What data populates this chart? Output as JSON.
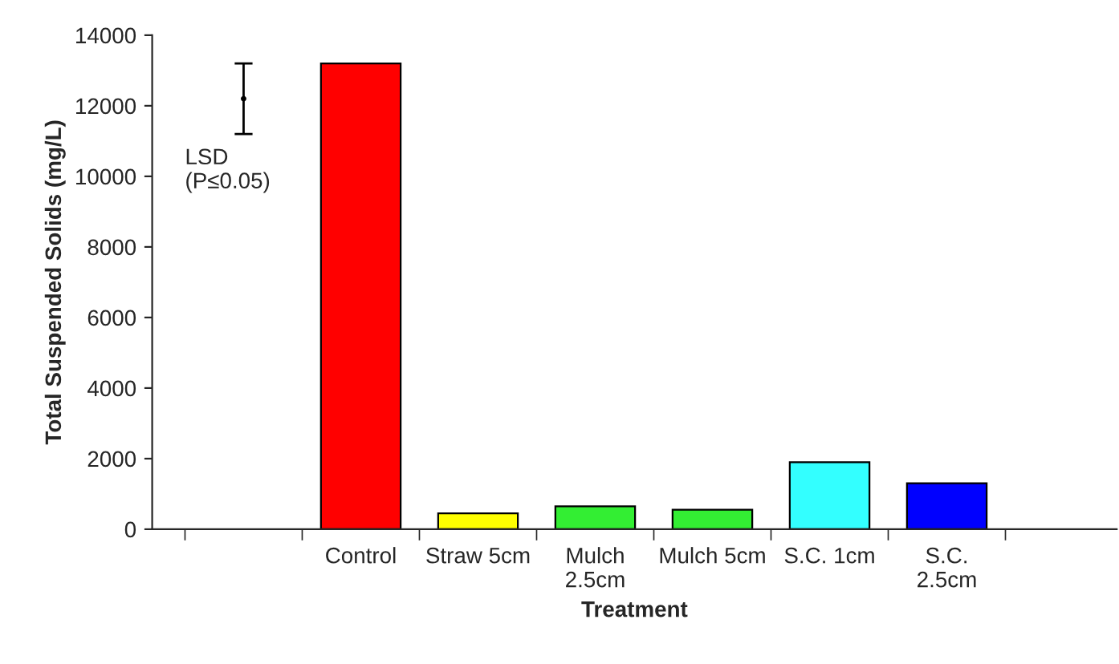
{
  "chart_data": {
    "type": "bar",
    "xlabel": "Treatment",
    "ylabel": "Total Suspended Solids (mg/L)",
    "categories": [
      null,
      "Control",
      "Straw 5cm",
      "Mulch\n2.5cm",
      "Mulch 5cm",
      "S.C. 1cm",
      "S.C.\n2.5cm"
    ],
    "series": [
      {
        "values": [
          null,
          13200,
          450,
          650,
          550,
          1900,
          1300
        ],
        "colors": [
          "#000000",
          "#ff0000",
          "#ffff00",
          "#33ee33",
          "#33ee33",
          "#33ffff",
          "#0000ff"
        ]
      },
      {
        "type": "scatter",
        "marker": "none",
        "color": "#000000",
        "values": [
          12200,
          null,
          null,
          null,
          null,
          null,
          null
        ],
        "errors": [
          1000,
          null,
          null,
          null,
          null,
          null,
          null
        ]
      }
    ],
    "annotations": [
      "LSD\n(P≤0.05)"
    ],
    "ylim": [
      0,
      14000
    ],
    "yticks": [
      0,
      2000,
      4000,
      6000,
      8000,
      10000,
      12000,
      14000
    ],
    "grid": false,
    "legend": false
  }
}
